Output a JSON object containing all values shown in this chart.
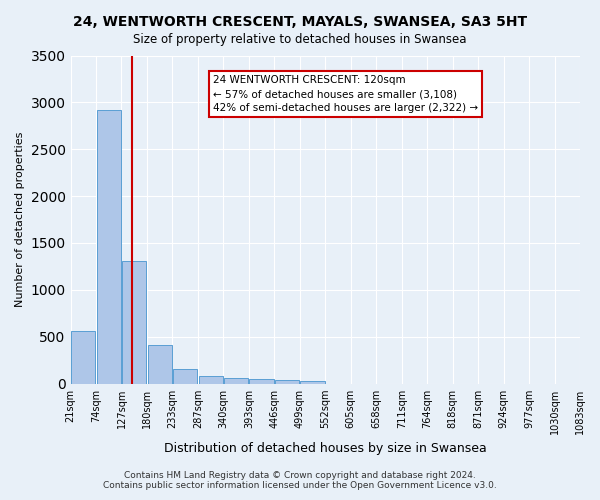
{
  "title": "24, WENTWORTH CRESCENT, MAYALS, SWANSEA, SA3 5HT",
  "subtitle": "Size of property relative to detached houses in Swansea",
  "xlabel": "Distribution of detached houses by size in Swansea",
  "ylabel": "Number of detached properties",
  "footer_line1": "Contains HM Land Registry data © Crown copyright and database right 2024.",
  "footer_line2": "Contains public sector information licensed under the Open Government Licence v3.0.",
  "bin_labels": [
    "21sqm",
    "74sqm",
    "127sqm",
    "180sqm",
    "233sqm",
    "287sqm",
    "340sqm",
    "393sqm",
    "446sqm",
    "499sqm",
    "552sqm",
    "605sqm",
    "658sqm",
    "711sqm",
    "764sqm",
    "818sqm",
    "871sqm",
    "924sqm",
    "977sqm",
    "1030sqm",
    "1083sqm"
  ],
  "bar_values": [
    560,
    2920,
    1310,
    415,
    155,
    80,
    55,
    50,
    40,
    25,
    0,
    0,
    0,
    0,
    0,
    0,
    0,
    0,
    0,
    0
  ],
  "bar_color": "#aec6e8",
  "bar_edge_color": "#5a9fd4",
  "property_line_x": 1.93,
  "property_line_color": "#cc0000",
  "annotation_text": "24 WENTWORTH CRESCENT: 120sqm\n← 57% of detached houses are smaller (3,108)\n42% of semi-detached houses are larger (2,322) →",
  "annotation_box_color": "#ffffff",
  "annotation_border_color": "#cc0000",
  "ylim": [
    0,
    3500
  ],
  "background_color": "#e8f0f8",
  "grid_color": "#ffffff"
}
